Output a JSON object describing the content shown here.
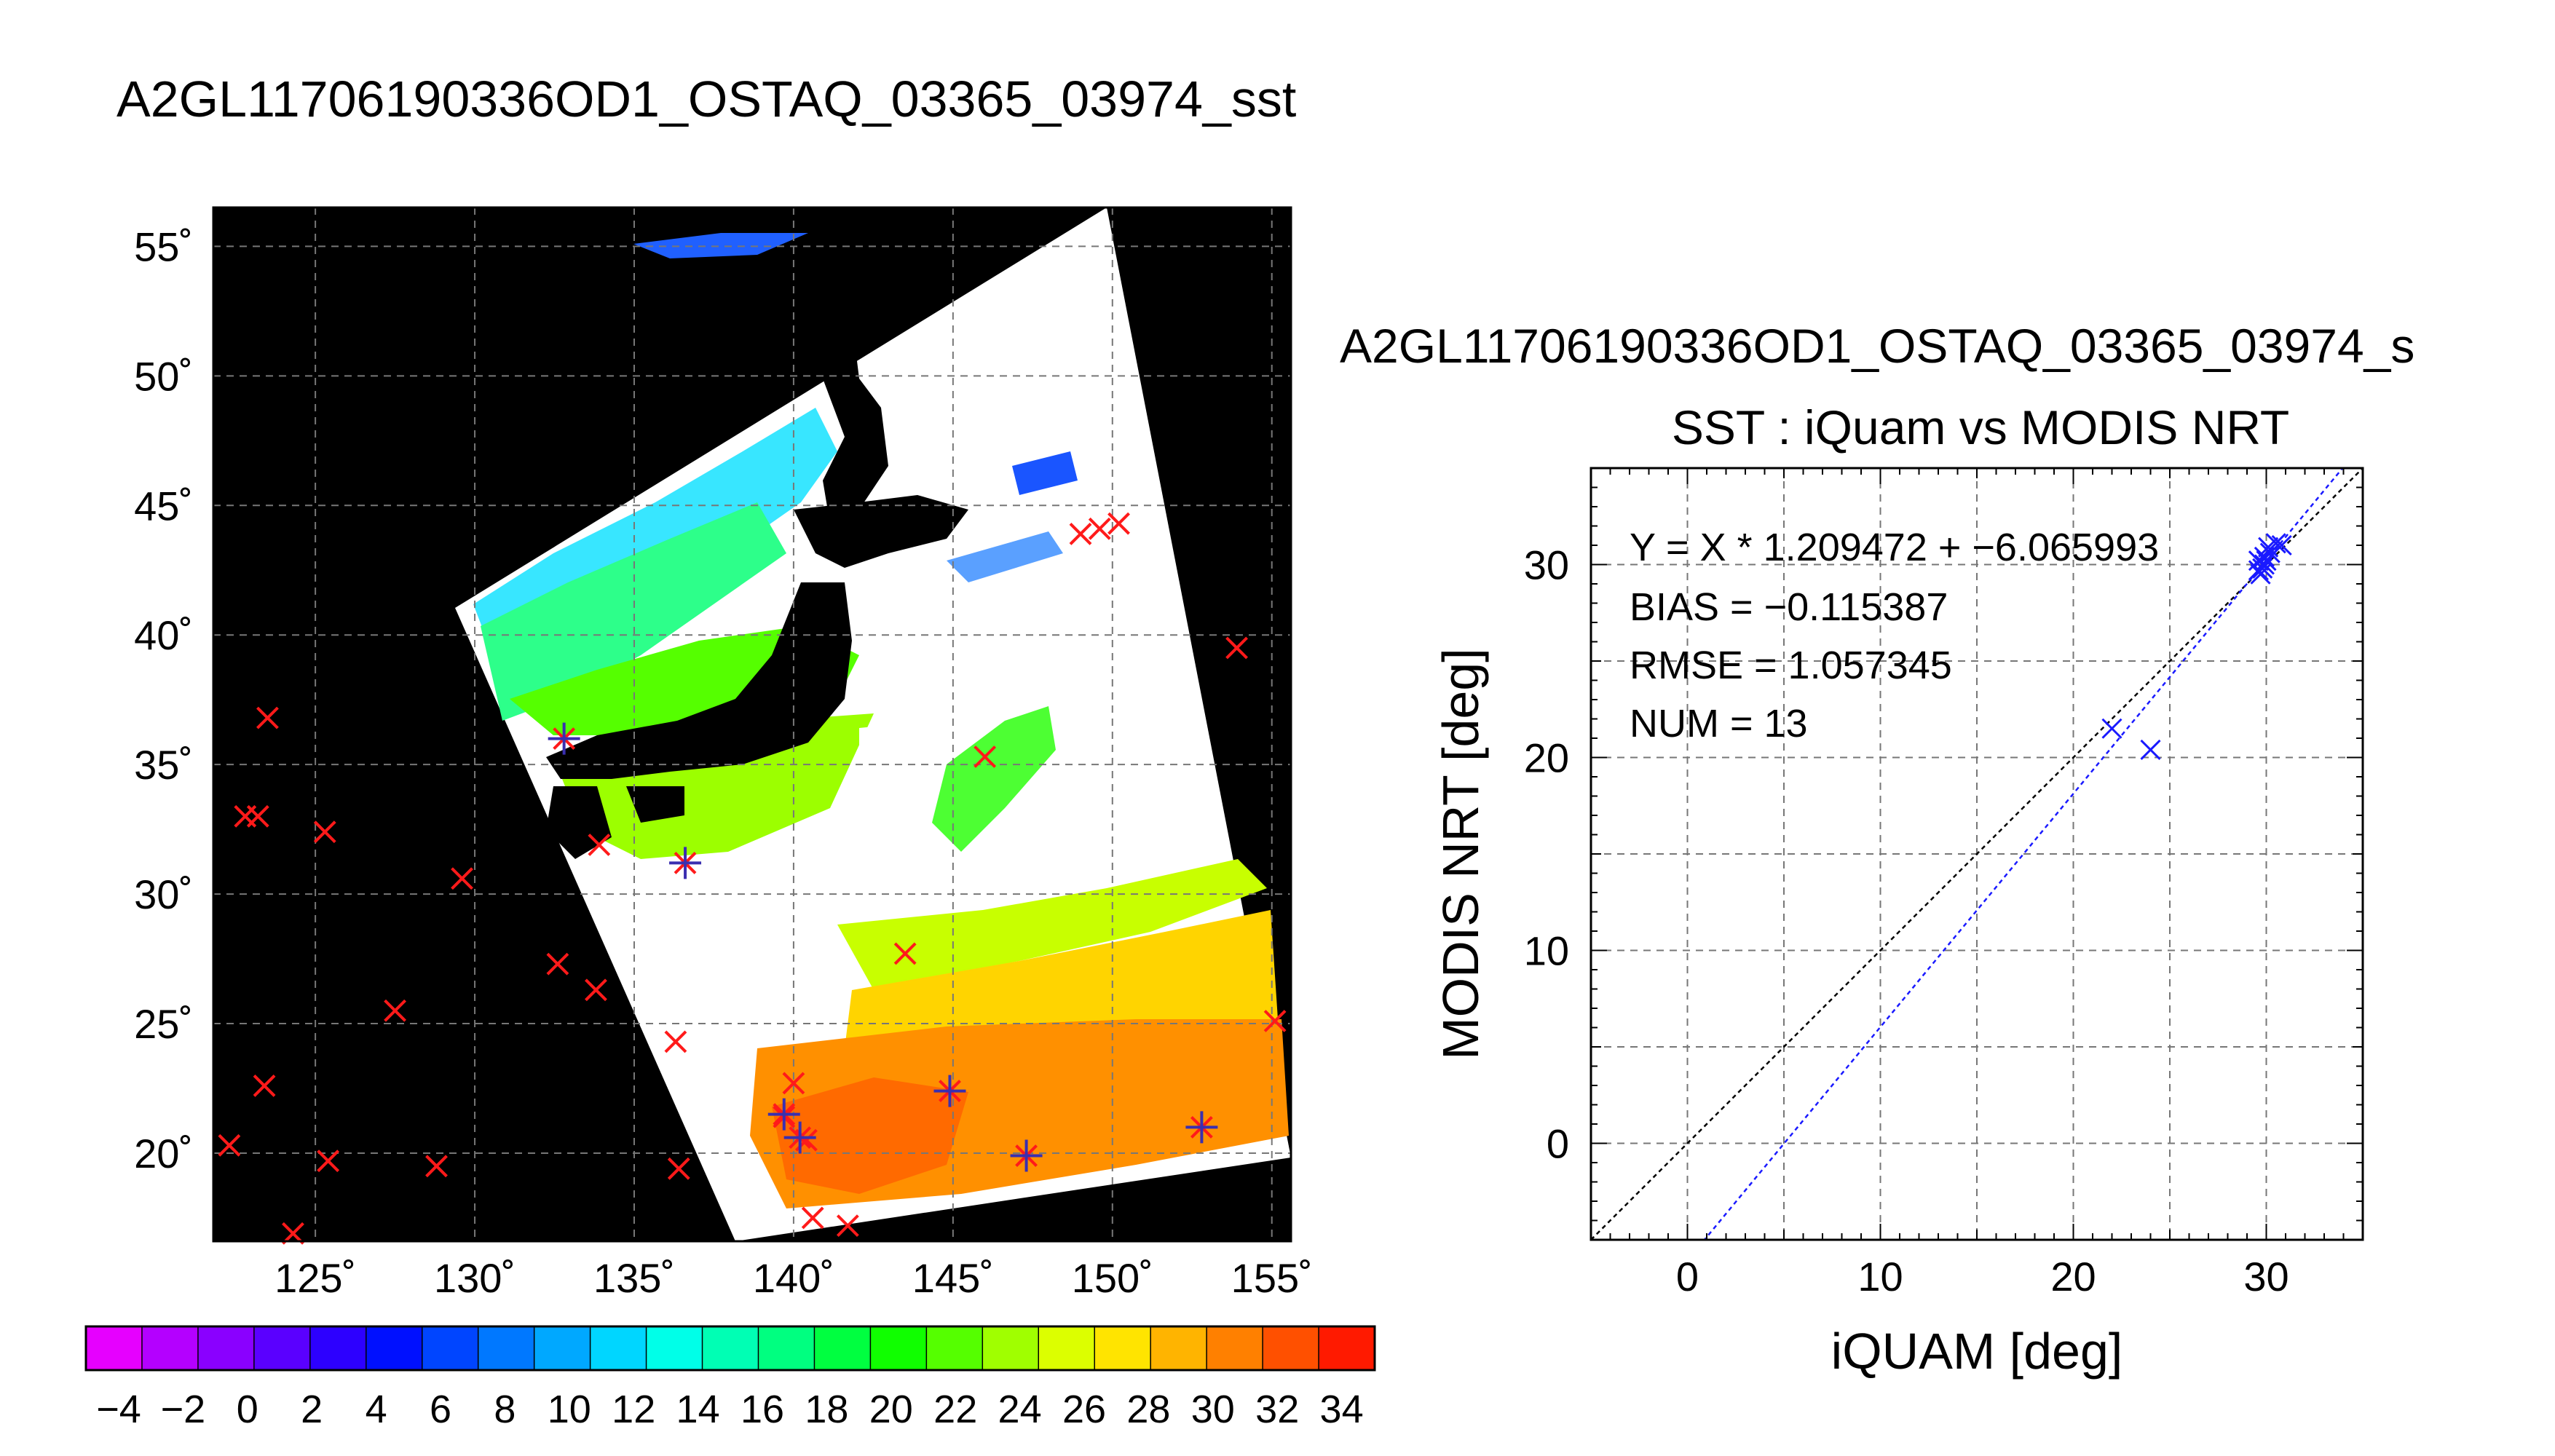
{
  "title_main": "A2GL11706190336OD1_OSTAQ_03365_03974_sst",
  "map": {
    "lat_ticks": [
      "55˚",
      "50˚",
      "45˚",
      "40˚",
      "35˚",
      "30˚",
      "25˚",
      "20˚"
    ],
    "lon_ticks": [
      "125˚",
      "130˚",
      "135˚",
      "140˚",
      "145˚",
      "150˚",
      "155˚"
    ],
    "lat_values": [
      55,
      50,
      45,
      40,
      35,
      30,
      25,
      20
    ],
    "lon_values": [
      125,
      130,
      135,
      140,
      145,
      150,
      155
    ],
    "lon_range": [
      121.8,
      155.6
    ],
    "lat_range": [
      16.6,
      56.5
    ],
    "grid": true,
    "red_x_points": [
      [
        123.5,
        36.8
      ],
      [
        122.8,
        33.0
      ],
      [
        123.2,
        33.0
      ],
      [
        125.3,
        32.4
      ],
      [
        129.6,
        30.6
      ],
      [
        132.6,
        27.3
      ],
      [
        133.8,
        26.3
      ],
      [
        127.5,
        25.5
      ],
      [
        136.3,
        24.3
      ],
      [
        123.4,
        22.6
      ],
      [
        122.3,
        20.3
      ],
      [
        125.4,
        19.7
      ],
      [
        128.8,
        19.5
      ],
      [
        136.4,
        19.4
      ],
      [
        124.3,
        16.9
      ],
      [
        140.6,
        17.5
      ],
      [
        141.7,
        17.2
      ],
      [
        133.9,
        31.9
      ],
      [
        143.5,
        27.7
      ],
      [
        146.0,
        35.3
      ],
      [
        149.0,
        43.9
      ],
      [
        149.6,
        44.1
      ],
      [
        150.2,
        44.3
      ],
      [
        153.9,
        39.5
      ],
      [
        155.1,
        25.1
      ],
      [
        140.0,
        22.7
      ],
      [
        139.7,
        21.4
      ],
      [
        140.4,
        20.5
      ]
    ],
    "blue_star_points": [
      [
        132.8,
        36.0
      ],
      [
        136.6,
        31.2
      ],
      [
        139.7,
        21.5
      ],
      [
        140.2,
        20.6
      ],
      [
        144.9,
        22.4
      ],
      [
        147.3,
        19.9
      ],
      [
        152.8,
        21.0
      ]
    ]
  },
  "colorbar": {
    "tick_labels": [
      "−4",
      "−2",
      "0",
      "2",
      "4",
      "6",
      "8",
      "10",
      "12",
      "14",
      "16",
      "18",
      "20",
      "22",
      "24",
      "26",
      "28",
      "30",
      "32",
      "34"
    ],
    "colors": [
      "#e600ff",
      "#b400ff",
      "#8a00ff",
      "#5a00ff",
      "#2d00ff",
      "#0010ff",
      "#0045ff",
      "#0078ff",
      "#00a8ff",
      "#00d6ff",
      "#00ffe8",
      "#00ffb4",
      "#00ff80",
      "#00ff40",
      "#10ff00",
      "#55ff00",
      "#a0ff00",
      "#dcff00",
      "#ffe400",
      "#ffb400",
      "#ff8000",
      "#ff5000",
      "#ff1a00"
    ]
  },
  "chart_data": {
    "type": "scatter",
    "title": "A2GL11706190336OD1_OSTAQ_03365_03974_s",
    "subtitle": "SST : iQuam vs MODIS NRT",
    "xlabel": "iQUAM [deg]",
    "ylabel": "MODIS NRT [deg]",
    "xlim": [
      -5,
      35
    ],
    "ylim": [
      -5,
      35
    ],
    "x_ticks": [
      0,
      10,
      20,
      30
    ],
    "y_ticks": [
      0,
      10,
      20,
      30
    ],
    "x_tick_labels": [
      "0",
      "10",
      "20",
      "30"
    ],
    "y_tick_labels": [
      "0",
      "10",
      "20",
      "30"
    ],
    "grid": true,
    "points": [
      {
        "x": 22.0,
        "y": 21.5
      },
      {
        "x": 24.0,
        "y": 20.4
      },
      {
        "x": 29.6,
        "y": 30.2
      },
      {
        "x": 29.8,
        "y": 29.8
      },
      {
        "x": 29.7,
        "y": 29.5
      },
      {
        "x": 29.9,
        "y": 30.4
      },
      {
        "x": 30.1,
        "y": 30.9
      },
      {
        "x": 30.5,
        "y": 31.1
      },
      {
        "x": 30.2,
        "y": 30.6
      },
      {
        "x": 29.9,
        "y": 30.0
      },
      {
        "x": 30.8,
        "y": 31.0
      },
      {
        "x": 29.6,
        "y": 29.7
      },
      {
        "x": 30.0,
        "y": 30.2
      }
    ],
    "fit": {
      "slope": 1.209472,
      "intercept": -6.065993
    },
    "stats_text": [
      "Y = X * 1.209472 + −6.065993",
      "BIAS = −0.115387",
      "RMSE = 1.057345",
      "NUM = 13"
    ]
  }
}
